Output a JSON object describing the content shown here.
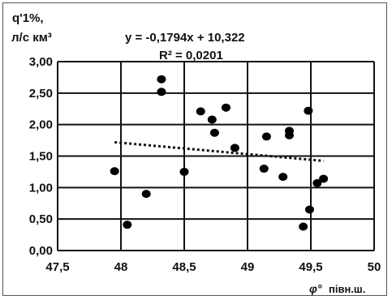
{
  "chart_data": {
    "type": "scatter",
    "ylabel_line1": "q'1%,",
    "ylabel_line2": "л/с км³",
    "xlabel_symbol": "φ°",
    "xlabel_text": "півн.ш.",
    "equation": "y = -0,1794x + 10,322",
    "r_squared": "R² = 0,0201",
    "xlim": [
      47.5,
      50
    ],
    "ylim": [
      0,
      3
    ],
    "x_ticks": [
      {
        "value": 47.5,
        "label": "47,5"
      },
      {
        "value": 48,
        "label": "48"
      },
      {
        "value": 48.5,
        "label": "48,5"
      },
      {
        "value": 49,
        "label": "49"
      },
      {
        "value": 49.5,
        "label": "49,5"
      },
      {
        "value": 50,
        "label": "50"
      }
    ],
    "y_ticks": [
      {
        "value": 0,
        "label": "0,00"
      },
      {
        "value": 0.5,
        "label": "0,50"
      },
      {
        "value": 1,
        "label": "1,00"
      },
      {
        "value": 1.5,
        "label": "1,50"
      },
      {
        "value": 2,
        "label": "2,00"
      },
      {
        "value": 2.5,
        "label": "2,50"
      },
      {
        "value": 3,
        "label": "3,00"
      }
    ],
    "grid": true,
    "trendline": {
      "slope": -0.1794,
      "intercept": 10.322,
      "x_range": [
        47.95,
        49.6
      ]
    },
    "points": [
      {
        "x": 47.95,
        "y": 1.26
      },
      {
        "x": 48.05,
        "y": 0.41
      },
      {
        "x": 48.2,
        "y": 0.9
      },
      {
        "x": 48.32,
        "y": 2.72
      },
      {
        "x": 48.32,
        "y": 2.52
      },
      {
        "x": 48.5,
        "y": 1.25
      },
      {
        "x": 48.63,
        "y": 2.21
      },
      {
        "x": 48.72,
        "y": 2.08
      },
      {
        "x": 48.74,
        "y": 1.87
      },
      {
        "x": 48.83,
        "y": 2.27
      },
      {
        "x": 48.9,
        "y": 1.63
      },
      {
        "x": 49.13,
        "y": 1.3
      },
      {
        "x": 49.15,
        "y": 1.81
      },
      {
        "x": 49.28,
        "y": 1.17
      },
      {
        "x": 49.33,
        "y": 1.9
      },
      {
        "x": 49.33,
        "y": 1.83
      },
      {
        "x": 49.44,
        "y": 0.38
      },
      {
        "x": 49.48,
        "y": 2.22
      },
      {
        "x": 49.49,
        "y": 0.65
      },
      {
        "x": 49.55,
        "y": 1.07
      },
      {
        "x": 49.6,
        "y": 1.14
      }
    ]
  }
}
